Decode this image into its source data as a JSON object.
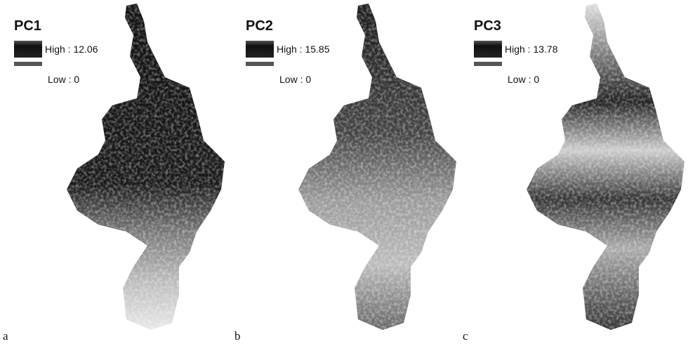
{
  "panels": [
    {
      "label": "a",
      "title": "PC1",
      "legend": {
        "high": "High : 12.06",
        "low": "Low : 0"
      }
    },
    {
      "label": "b",
      "title": "PC2",
      "legend": {
        "high": "High : 15.85",
        "low": "Low : 0"
      }
    },
    {
      "label": "c",
      "title": "PC3",
      "legend": {
        "high": "High : 13.78",
        "low": "Low : 0"
      }
    }
  ]
}
